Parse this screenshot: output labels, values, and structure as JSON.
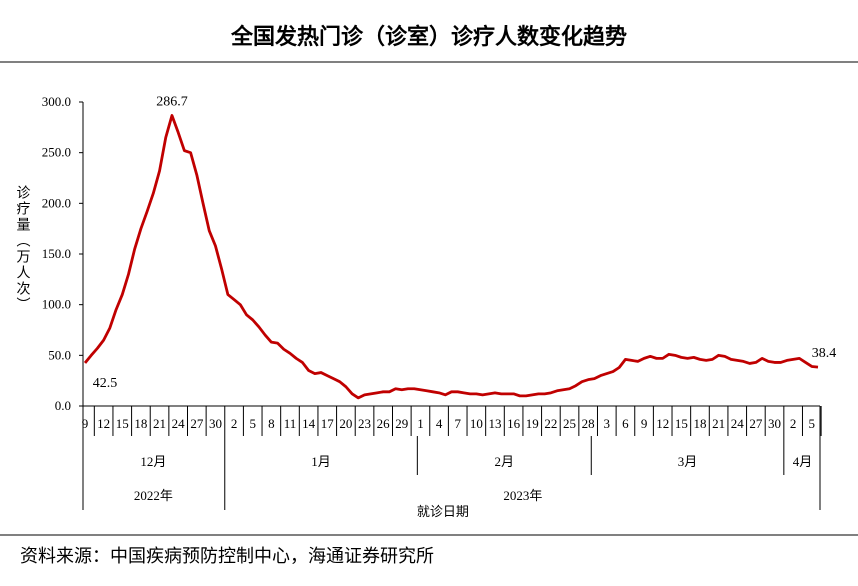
{
  "title": "全国发热门诊（诊室）诊疗人数变化趋势",
  "source": "资料来源：中国疾病预防控制中心，海通证券研究所",
  "chart_data": {
    "type": "line",
    "y_label": "诊疗量（万人次）",
    "x_label": "就诊日期",
    "months": [
      "12月",
      "1月",
      "2月",
      "3月",
      "4月"
    ],
    "years": [
      "2022年",
      "2023年"
    ],
    "categories": [
      "9",
      null,
      null,
      "12",
      null,
      null,
      "15",
      null,
      null,
      "18",
      null,
      null,
      "21",
      null,
      null,
      "24",
      null,
      null,
      "27",
      null,
      null,
      "30",
      null,
      null,
      "2",
      null,
      null,
      "5",
      null,
      null,
      "8",
      null,
      null,
      "11",
      null,
      null,
      "14",
      null,
      null,
      "17",
      null,
      null,
      "20",
      null,
      null,
      "23",
      null,
      null,
      "26",
      null,
      null,
      "29",
      null,
      null,
      "1",
      null,
      null,
      "4",
      null,
      null,
      "7",
      null,
      null,
      "10",
      null,
      null,
      "13",
      null,
      null,
      "16",
      null,
      null,
      "19",
      null,
      null,
      "22",
      null,
      null,
      "25",
      null,
      null,
      "28",
      null,
      null,
      "3",
      null,
      null,
      "6",
      null,
      null,
      "9",
      null,
      null,
      "12",
      null,
      null,
      "15",
      null,
      null,
      "18",
      null,
      null,
      "21",
      null,
      null,
      "24",
      null,
      null,
      "27",
      null,
      null,
      "30",
      null,
      null,
      "2",
      null,
      null,
      "5",
      null
    ],
    "series": [
      {
        "name": "诊疗量",
        "color": "#c00000",
        "values": [
          42.5,
          50,
          57,
          65,
          77,
          95,
          110,
          130,
          155,
          175,
          192,
          210,
          232,
          265,
          286.7,
          270,
          252,
          250,
          228,
          200,
          173,
          158,
          135,
          110,
          105,
          100,
          90,
          85,
          78,
          70,
          63,
          62,
          56,
          52,
          47,
          43,
          35,
          32,
          33,
          30,
          27,
          24,
          19,
          12,
          8,
          11,
          12,
          13,
          14,
          14,
          17,
          16,
          17,
          17,
          16,
          15,
          14,
          13,
          11,
          14,
          14,
          13,
          12,
          12,
          11,
          12,
          13,
          12,
          12,
          12,
          10,
          10,
          11,
          12,
          12,
          13,
          15,
          16,
          17,
          20,
          24,
          26,
          27,
          30,
          32,
          34,
          38,
          46,
          45,
          44,
          47,
          49,
          47,
          47,
          51,
          50,
          48,
          47,
          48,
          46,
          45,
          46,
          50,
          49,
          46,
          45,
          44,
          42,
          43,
          47,
          44,
          43,
          43,
          45,
          46,
          47,
          43,
          39,
          38.4
        ],
        "value_labels": [
          "42.5",
          null,
          null,
          null,
          null,
          null,
          null,
          null,
          null,
          null,
          null,
          null,
          null,
          null,
          "286.7",
          null,
          null,
          null,
          null,
          null,
          null,
          null,
          null,
          null,
          null,
          null,
          null,
          null,
          null,
          null,
          null,
          null,
          null,
          null,
          null,
          null,
          null,
          null,
          null,
          null,
          null,
          null,
          null,
          null,
          null,
          null,
          null,
          null,
          null,
          null,
          null,
          null,
          null,
          null,
          null,
          null,
          null,
          null,
          null,
          null,
          null,
          null,
          null,
          null,
          null,
          null,
          null,
          null,
          null,
          null,
          null,
          null,
          null,
          null,
          null,
          null,
          null,
          null,
          null,
          null,
          null,
          null,
          null,
          null,
          null,
          null,
          null,
          null,
          null,
          null,
          null,
          null,
          null,
          null,
          null,
          null,
          null,
          null,
          null,
          null,
          null,
          null,
          null,
          null,
          null,
          null,
          null,
          null,
          null,
          null,
          null,
          null,
          null,
          null,
          null,
          null,
          null,
          null,
          "38.4"
        ]
      }
    ],
    "ylim": [
      0,
      300
    ],
    "yticks": [
      {
        "value": 0,
        "label": "0.0"
      },
      {
        "value": 50,
        "label": "50.0"
      },
      {
        "value": 100,
        "label": "100.0"
      },
      {
        "value": 150,
        "label": "150.0"
      },
      {
        "value": 200,
        "label": "200.0"
      },
      {
        "value": 250,
        "label": "250.0"
      },
      {
        "value": 300,
        "label": "300.0"
      }
    ]
  }
}
